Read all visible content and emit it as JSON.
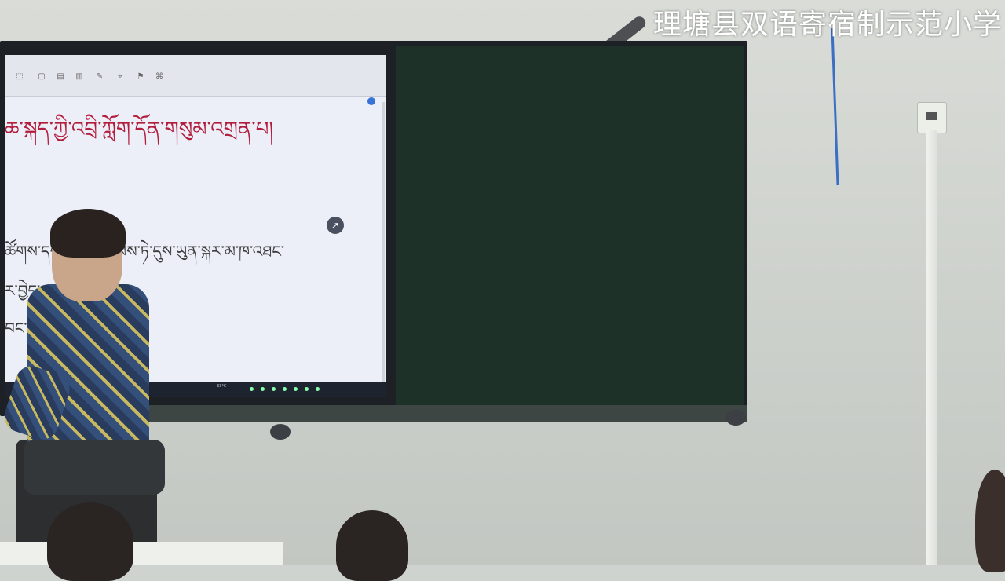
{
  "watermark": "理塘县双语寄宿制示范小学",
  "screen": {
    "ribbon_items": [
      "⬚",
      "▢",
      "▤",
      "▥",
      "✎",
      "⌖",
      "⚑",
      "⌘",
      "◇"
    ],
    "status_text": "",
    "tibetan_lines": [
      {
        "text": "ཆ་སྐད་ཀྱི་འབྲི་ཀློག་དོན་གསུམ་འགྲན་པ།",
        "style": "title"
      },
      {
        "text": "ཚོགས་དག་  ཀྱིས་བརྩམས་ཏེ་དུས་ཡུན་སྐར་མ་ཁ་འཐང་",
        "style": "body"
      },
      {
        "text": "ར་བྱེད་",
        "style": "body"
      },
      {
        "text": "བང་། ཉི་ཟབ    ། བོ་ལྷག",
        "style": "body"
      }
    ],
    "taskbar": {
      "temperature": "33°C",
      "weather": "",
      "time": "",
      "date": ""
    }
  },
  "colors": {
    "title_text": "#b31d3c",
    "blackboard": "#1e3128",
    "watermark": "#ffffff"
  }
}
